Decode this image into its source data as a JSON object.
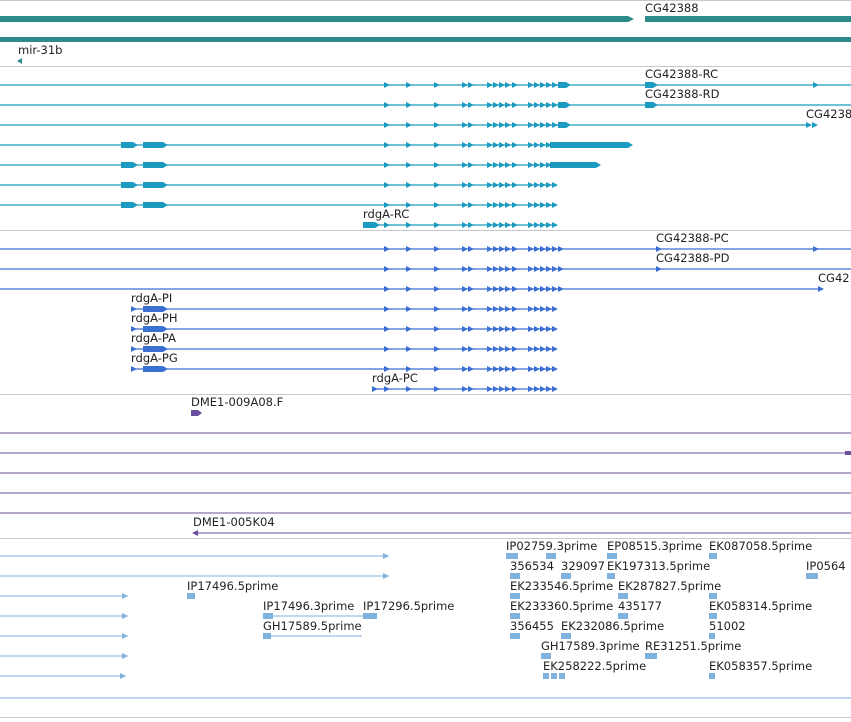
{
  "colors": {
    "teal_gene": "#2e8b8b",
    "teal_transcript": "#1b9bbf",
    "blue_cds": "#3b6fd1",
    "purple_est": "#6b4f9e",
    "light_blue_est": "#7fb2dd",
    "separator": "#c8c8c8",
    "label": "#222222"
  },
  "tracks": {
    "gene": {
      "labels": [
        "CG42388",
        "mir-31b"
      ]
    },
    "transcripts": {
      "labels": [
        "CG42388-RC",
        "CG42388-RD",
        "CG4238",
        "rdgA-RC"
      ]
    },
    "proteins": {
      "labels": [
        "CG42388-PC",
        "CG42388-PD",
        "CG42",
        "rdgA-PI",
        "rdgA-PH",
        "rdgA-PA",
        "rdgA-PG",
        "rdgA-PC"
      ]
    },
    "clones": {
      "labels": [
        "DME1-009A08.F",
        "DME1-005K04"
      ]
    },
    "ests": {
      "labels": [
        "IP02759.3prime",
        "EP08515.3prime",
        "EK087058.5prime",
        "356534",
        "329097",
        "EK197313.5prime",
        "IP0564",
        "IP17496.5prime",
        "EK233546.5prime",
        "EK287827.5prime",
        "IP17496.3prime",
        "IP17296.5prime",
        "EK233360.5prime",
        "435177",
        "EK058314.5prime",
        "GH17589.5prime",
        "356455",
        "EK232086.5prime",
        "51002",
        "GH17589.3prime",
        "RE31251.5prime",
        "EK258222.5prime",
        "EK058357.5prime"
      ]
    }
  }
}
